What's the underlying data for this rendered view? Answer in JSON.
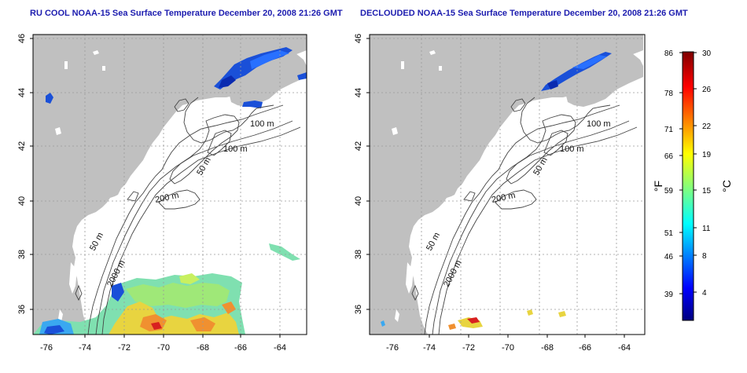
{
  "panels": [
    {
      "title": "RU COOL NOAA-15 Sea Surface Temperature December 20, 2008 21:26 GMT",
      "x_ticks": [
        "-76",
        "-74",
        "-72",
        "-70",
        "-68",
        "-66",
        "-64"
      ],
      "y_ticks": [
        "36",
        "38",
        "40",
        "42",
        "44",
        "46"
      ],
      "isobath_labels": [
        "100 m",
        "100 m",
        "50 m",
        "200 m",
        "50 m",
        "2000 m"
      ]
    },
    {
      "title": "DECLOUDED NOAA-15 Sea Surface Temperature December 20, 2008 21:26 GMT",
      "x_ticks": [
        "-76",
        "-74",
        "-72",
        "-70",
        "-68",
        "-66",
        "-64"
      ],
      "y_ticks": [
        "36",
        "38",
        "40",
        "42",
        "44",
        "46"
      ],
      "isobath_labels": [
        "100 m",
        "100 m",
        "50 m",
        "200 m",
        "50 m",
        "2000 m"
      ]
    }
  ],
  "colorbar": {
    "f_label": "°F",
    "c_label": "°C",
    "f_ticks": [
      "86",
      "78",
      "71",
      "66",
      "59",
      "51",
      "46",
      "39"
    ],
    "c_ticks": [
      "30",
      "26",
      "22",
      "19",
      "15",
      "11",
      "8",
      "4"
    ]
  },
  "colors": {
    "land": "#c0c0c0",
    "title": "#1c1caf",
    "grid": "#9a9a9a",
    "contour": "#444444"
  }
}
